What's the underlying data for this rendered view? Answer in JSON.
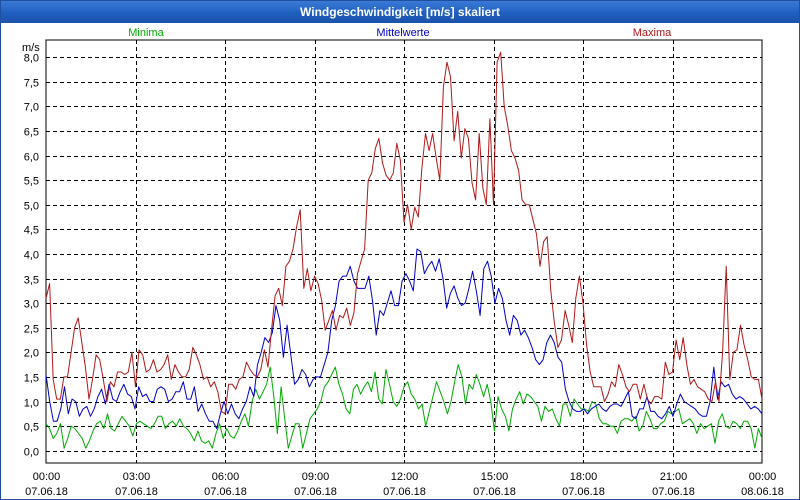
{
  "window": {
    "title": "Windgeschwindigkeit [m/s] skaliert"
  },
  "chart_data": {
    "type": "line",
    "title": "Windgeschwindigkeit [m/s] skaliert",
    "ylabel": "m/s",
    "xlabel": "",
    "ylim": [
      -0.25,
      8.35
    ],
    "xlim": [
      0,
      24
    ],
    "grid": true,
    "yticks": [
      {
        "v": 0.0,
        "label": "0,0"
      },
      {
        "v": 0.5,
        "label": "0,5"
      },
      {
        "v": 1.0,
        "label": "1,0"
      },
      {
        "v": 1.5,
        "label": "1,5"
      },
      {
        "v": 2.0,
        "label": "2,0"
      },
      {
        "v": 2.5,
        "label": "2,5"
      },
      {
        "v": 3.0,
        "label": "3,0"
      },
      {
        "v": 3.5,
        "label": "3,5"
      },
      {
        "v": 4.0,
        "label": "4,0"
      },
      {
        "v": 4.5,
        "label": "4,5"
      },
      {
        "v": 5.0,
        "label": "5,0"
      },
      {
        "v": 5.5,
        "label": "5,5"
      },
      {
        "v": 6.0,
        "label": "6,0"
      },
      {
        "v": 6.5,
        "label": "6,5"
      },
      {
        "v": 7.0,
        "label": "7,0"
      },
      {
        "v": 7.5,
        "label": "7,5"
      },
      {
        "v": 8.0,
        "label": "8,0"
      }
    ],
    "xticks": [
      {
        "h": 0,
        "time": "00:00",
        "date": "07.06.18"
      },
      {
        "h": 3,
        "time": "03:00",
        "date": "07.06.18"
      },
      {
        "h": 6,
        "time": "06:00",
        "date": "07.06.18"
      },
      {
        "h": 9,
        "time": "09:00",
        "date": "07.06.18"
      },
      {
        "h": 12,
        "time": "12:00",
        "date": "07.06.18"
      },
      {
        "h": 15,
        "time": "15:00",
        "date": "07.06.18"
      },
      {
        "h": 18,
        "time": "18:00",
        "date": "07.06.18"
      },
      {
        "h": 21,
        "time": "21:00",
        "date": "07.06.18"
      },
      {
        "h": 24,
        "time": "00:00",
        "date": "08.06.18"
      }
    ],
    "series": [
      {
        "name": "Minima",
        "color": "#00aa00",
        "legend_pos": "left",
        "values": [
          0.55,
          0.45,
          0.25,
          0.35,
          0.55,
          0.05,
          0.25,
          0.5,
          0.45,
          0.35,
          0.25,
          0.05,
          0.2,
          0.4,
          0.55,
          0.6,
          0.45,
          0.75,
          0.45,
          0.4,
          0.55,
          0.7,
          0.6,
          0.5,
          0.3,
          0.55,
          0.6,
          0.55,
          0.5,
          0.45,
          0.55,
          0.7,
          0.7,
          0.45,
          0.55,
          0.6,
          0.5,
          0.65,
          0.5,
          0.45,
          0.35,
          0.2,
          0.4,
          0.2,
          0.15,
          0.2,
          0.05,
          0.35,
          0.55,
          0.25,
          0.45,
          0.3,
          0.25,
          0.4,
          0.6,
          0.75,
          0.5,
          1.0,
          1.25,
          1.05,
          1.2,
          1.35,
          1.7,
          1.1,
          0.35,
          1.3,
          0.65,
          0.05,
          0.3,
          0.55,
          0.55,
          0.05,
          0.35,
          0.65,
          0.75,
          0.85,
          1.0,
          1.3,
          1.4,
          1.55,
          1.7,
          1.35,
          1.15,
          0.85,
          0.75,
          1.25,
          1.35,
          1.15,
          1.3,
          1.4,
          1.2,
          1.6,
          1.05,
          0.95,
          1.65,
          1.35,
          1.0,
          0.9,
          1.05,
          1.3,
          1.4,
          1.15,
          1.05,
          0.85,
          0.95,
          0.5,
          0.8,
          1.1,
          1.4,
          1.2,
          1.0,
          0.75,
          1.0,
          1.4,
          1.75,
          1.5,
          0.95,
          1.35,
          1.25,
          1.55,
          1.35,
          1.1,
          1.35,
          1.0,
          0.4,
          1.1,
          0.85,
          0.7,
          0.4,
          0.85,
          1.05,
          1.2,
          0.95,
          1.15,
          1.1,
          1.0,
          0.9,
          0.6,
          0.9,
          0.8,
          0.85,
          0.65,
          0.5,
          0.95,
          0.95,
          0.7,
          1.05,
          0.95,
          0.85,
          0.85,
          0.8,
          1.0,
          0.95,
          0.65,
          0.55,
          0.55,
          0.5,
          0.5,
          0.35,
          0.6,
          0.65,
          0.65,
          0.6,
          0.7,
          0.4,
          0.5,
          0.8,
          0.65,
          0.45,
          0.45,
          0.55,
          0.6,
          0.8,
          0.75,
          0.8,
          0.85,
          0.55,
          0.6,
          0.65,
          0.55,
          0.35,
          0.55,
          0.45,
          0.5,
          0.55,
          0.15,
          0.6,
          0.75,
          0.5,
          0.45,
          0.6,
          0.55,
          0.45,
          0.6,
          0.6,
          0.45,
          0.05,
          0.45,
          0.25
        ]
      },
      {
        "name": "Mittelwerte",
        "color": "#0000c8",
        "legend_pos": "center",
        "values": [
          1.55,
          1.0,
          0.6,
          0.6,
          0.85,
          1.3,
          0.75,
          1.05,
          1.0,
          0.7,
          0.85,
          0.9,
          0.7,
          0.85,
          1.1,
          1.25,
          0.95,
          1.35,
          1.05,
          1.0,
          1.2,
          1.35,
          1.15,
          1.1,
          0.85,
          1.3,
          1.1,
          1.15,
          1.0,
          1.0,
          1.25,
          1.3,
          1.25,
          1.0,
          1.05,
          1.2,
          1.2,
          1.4,
          1.05,
          1.05,
          1.3,
          0.8,
          0.95,
          0.75,
          0.6,
          0.6,
          0.45,
          0.75,
          1.0,
          0.75,
          0.95,
          0.75,
          0.65,
          0.85,
          1.0,
          1.3,
          1.1,
          1.75,
          2.0,
          2.3,
          2.2,
          2.4,
          2.95,
          2.65,
          1.9,
          2.55,
          1.95,
          1.35,
          1.45,
          1.65,
          1.55,
          1.3,
          1.45,
          1.5,
          1.5,
          1.75,
          2.0,
          2.65,
          2.95,
          3.45,
          3.55,
          3.55,
          3.75,
          3.45,
          3.3,
          3.3,
          3.3,
          3.55,
          3.05,
          2.35,
          2.85,
          2.75,
          3.0,
          3.25,
          2.95,
          2.95,
          3.45,
          3.6,
          3.45,
          3.25,
          4.1,
          4.05,
          3.6,
          3.75,
          3.85,
          3.65,
          3.9,
          3.5,
          2.9,
          3.2,
          3.35,
          3.1,
          2.95,
          3.0,
          3.3,
          3.65,
          3.25,
          2.75,
          3.7,
          3.85,
          3.55,
          3.0,
          3.3,
          3.1,
          2.65,
          2.35,
          2.75,
          2.65,
          2.35,
          2.45,
          2.3,
          2.1,
          1.85,
          1.75,
          1.85,
          2.2,
          2.35,
          2.2,
          1.9,
          1.8,
          1.25,
          1.0,
          0.85,
          0.8,
          0.8,
          0.85,
          0.75,
          0.85,
          0.9,
          0.95,
          0.85,
          0.8,
          0.9,
          0.95,
          0.95,
          0.9,
          1.05,
          1.2,
          0.7,
          0.65,
          0.85,
          0.85,
          1.1,
          0.8,
          0.8,
          0.7,
          0.65,
          0.75,
          0.9,
          0.7,
          0.95,
          1.15,
          1.0,
          0.95,
          0.9,
          0.85,
          0.75,
          0.7,
          0.7,
          1.0,
          1.7,
          1.05,
          1.4,
          1.3,
          1.35,
          1.15,
          1.05,
          1.1,
          1.05,
          0.95,
          0.85,
          0.9,
          0.85,
          0.75
        ]
      },
      {
        "name": "Maxima",
        "color": "#b01818",
        "legend_pos": "right",
        "values": [
          3.1,
          3.4,
          1.45,
          1.05,
          1.05,
          1.5,
          1.5,
          2.0,
          2.5,
          2.7,
          2.2,
          1.7,
          1.05,
          1.45,
          1.95,
          1.85,
          1.45,
          1.0,
          1.4,
          1.3,
          1.6,
          1.6,
          1.55,
          1.6,
          2.0,
          1.3,
          2.05,
          1.95,
          1.6,
          1.65,
          1.85,
          1.6,
          1.65,
          1.75,
          1.95,
          1.45,
          1.75,
          1.6,
          1.5,
          1.5,
          1.65,
          2.1,
          1.95,
          1.75,
          1.45,
          1.5,
          1.3,
          1.4,
          1.2,
          0.8,
          0.75,
          1.35,
          1.35,
          1.25,
          1.45,
          1.5,
          1.8,
          1.65,
          1.55,
          1.5,
          1.65,
          2.05,
          1.7,
          2.45,
          3.15,
          3.3,
          2.95,
          3.75,
          3.85,
          4.1,
          4.55,
          4.9,
          3.3,
          3.7,
          3.25,
          3.55,
          3.4,
          3.05,
          2.45,
          2.65,
          2.85,
          2.45,
          2.75,
          2.7,
          2.9,
          2.55,
          2.8,
          3.6,
          3.85,
          4.1,
          5.5,
          5.65,
          6.15,
          6.35,
          5.85,
          5.6,
          5.5,
          5.65,
          6.25,
          5.9,
          4.65,
          5.0,
          4.5,
          4.95,
          4.75,
          5.75,
          6.45,
          6.1,
          6.45,
          5.95,
          5.5,
          7.4,
          7.9,
          7.6,
          6.3,
          6.9,
          5.95,
          6.55,
          6.35,
          5.45,
          5.1,
          6.45,
          5.35,
          5.0,
          6.75,
          5.0,
          7.9,
          8.1,
          7.0,
          6.6,
          6.1,
          5.95,
          5.7,
          5.1,
          5.0,
          5.0,
          4.7,
          4.4,
          3.75,
          4.25,
          4.35,
          3.25,
          2.6,
          2.1,
          2.25,
          2.85,
          2.55,
          2.2,
          3.1,
          3.55,
          3.0,
          2.15,
          1.6,
          1.3,
          1.3,
          1.3,
          1.0,
          1.15,
          1.4,
          1.3,
          1.75,
          1.55,
          1.3,
          1.2,
          1.35,
          1.35,
          1.05,
          1.35,
          1.05,
          0.95,
          1.1,
          1.1,
          1.05,
          1.8,
          1.55,
          1.6,
          2.25,
          1.85,
          2.3,
          1.75,
          1.35,
          1.45,
          1.3,
          1.25,
          1.2,
          1.05,
          1.0,
          1.4,
          1.0,
          2.0,
          3.75,
          1.45,
          2.0,
          2.05,
          2.55,
          2.15,
          1.85,
          1.5,
          1.45,
          1.45,
          1.05
        ]
      }
    ]
  }
}
